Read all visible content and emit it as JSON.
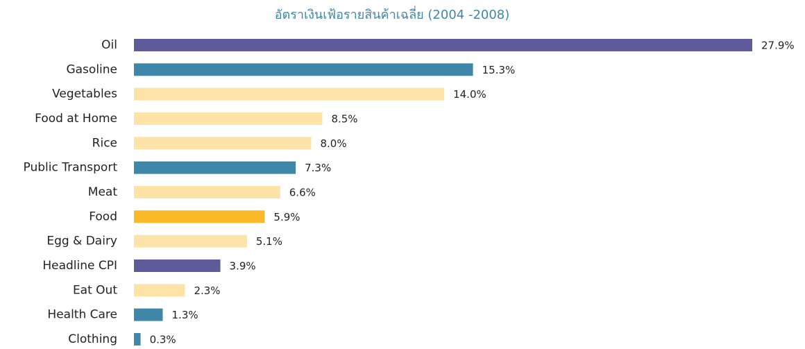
{
  "chart_data": {
    "type": "barh",
    "title": "อัตราเงินเฟ้อรายสินค้าเฉลี่ย (2004 -2008)",
    "categories": [
      "Oil",
      "Gasoline",
      "Vegetables",
      "Food at Home",
      "Rice",
      "Public Transport",
      "Meat",
      "Food",
      "Egg & Dairy",
      "Headline CPI",
      "Eat Out",
      "Health Care",
      "Clothing"
    ],
    "values": [
      27.9,
      15.3,
      14.0,
      8.5,
      8.0,
      7.3,
      6.6,
      5.9,
      5.1,
      3.9,
      2.3,
      1.3,
      0.3
    ],
    "value_labels": [
      "27.9%",
      "15.3%",
      "14.0%",
      "8.5%",
      "8.0%",
      "7.3%",
      "6.6%",
      "5.9%",
      "5.1%",
      "3.9%",
      "2.3%",
      "1.3%",
      "0.3%"
    ],
    "colors": [
      "#5f5a99",
      "#3f87a8",
      "#fde3a7",
      "#fde3a7",
      "#fde3a7",
      "#3f87a8",
      "#fde3a7",
      "#fbb829",
      "#fde3a7",
      "#5f5a99",
      "#fde3a7",
      "#3f87a8",
      "#3f87a8"
    ]
  }
}
